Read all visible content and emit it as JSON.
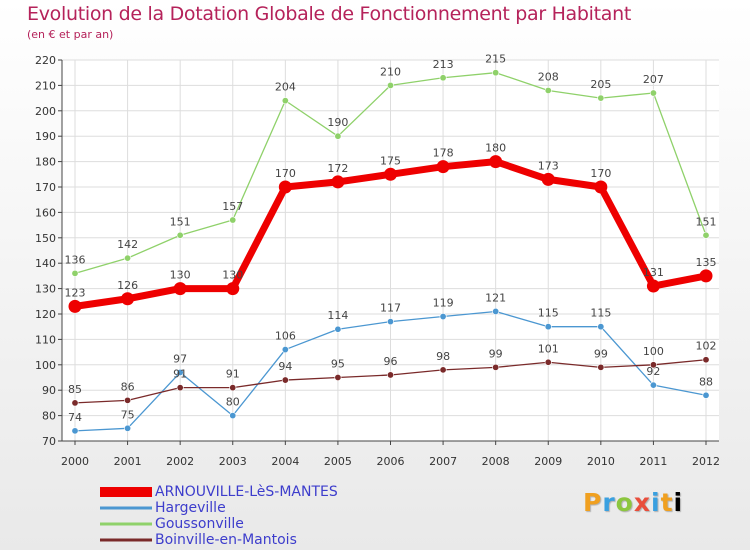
{
  "chart_data": {
    "type": "line",
    "title": "Evolution de la Dotation Globale de Fonctionnement par Habitant",
    "subtitle": "(en € et par an)",
    "xlabel": "",
    "ylabel": "",
    "ylim": [
      70,
      220
    ],
    "y_ticks": [
      70,
      80,
      90,
      100,
      110,
      120,
      130,
      140,
      150,
      160,
      170,
      180,
      190,
      200,
      210,
      220
    ],
    "grid": true,
    "legend_position": "bottom-left",
    "categories": [
      "2000",
      "2001",
      "2002",
      "2003",
      "2004",
      "2005",
      "2006",
      "2007",
      "2008",
      "2009",
      "2010",
      "2011",
      "2012"
    ],
    "series": [
      {
        "name": "Goussonville",
        "color": "#8fd16a",
        "values": [
          136,
          142,
          151,
          157,
          204,
          190,
          210,
          213,
          215,
          208,
          205,
          207,
          151
        ]
      },
      {
        "name": "Hargeville",
        "color": "#4b97d1",
        "values": [
          74,
          75,
          97,
          80,
          106,
          114,
          117,
          119,
          121,
          115,
          115,
          92,
          88
        ]
      },
      {
        "name": "Boinville-en-Mantois",
        "color": "#7a2a2a",
        "values": [
          85,
          86,
          91,
          91,
          94,
          95,
          96,
          98,
          99,
          101,
          99,
          100,
          102
        ]
      },
      {
        "name": "ARNOUVILLE-LèS-MANTES",
        "color": "#ee0000",
        "values": [
          123,
          126,
          130,
          130,
          170,
          172,
          175,
          178,
          180,
          173,
          170,
          131,
          135
        ]
      }
    ]
  },
  "legend": [
    {
      "label": "ARNOUVILLE-LèS-MANTES",
      "color": "#ee0000"
    },
    {
      "label": "Hargeville",
      "color": "#4b97d1"
    },
    {
      "label": "Goussonville",
      "color": "#8fd16a"
    },
    {
      "label": "Boinville-en-Mantois",
      "color": "#7a2a2a"
    }
  ],
  "logo": {
    "letters": [
      "P",
      "r",
      "o",
      "x",
      "i",
      "t",
      "i"
    ]
  }
}
